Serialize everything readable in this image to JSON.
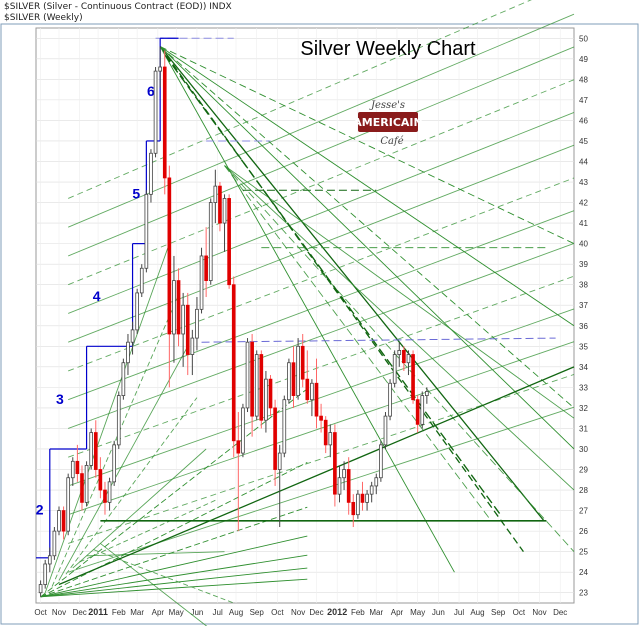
{
  "header": {
    "line1": "$SILVER (Silver - Continuous Contract (EOD)) INDX",
    "line2": "$SILVER (Weekly)"
  },
  "logo": {
    "line1": "Jesse's",
    "line2": "AMERICAIN",
    "line3": "Café"
  },
  "chart_data": {
    "type": "candlestick",
    "title": "Silver Weekly Chart",
    "ylim": [
      22.5,
      50.5
    ],
    "yticks": [
      23,
      24,
      25,
      26,
      27,
      28,
      29,
      30,
      31,
      32,
      33,
      34,
      35,
      36,
      37,
      38,
      39,
      40,
      41,
      42,
      43,
      44,
      45,
      46,
      47,
      48,
      49,
      50
    ],
    "x_labels": [
      {
        "label": "Oct",
        "week": 0
      },
      {
        "label": "Nov",
        "week": 4
      },
      {
        "label": "Dec",
        "week": 8.5
      },
      {
        "label": "2011",
        "week": 12.5
      },
      {
        "label": "Feb",
        "week": 17
      },
      {
        "label": "Mar",
        "week": 21
      },
      {
        "label": "Apr",
        "week": 25.5
      },
      {
        "label": "May",
        "week": 29.5
      },
      {
        "label": "Jun",
        "week": 34
      },
      {
        "label": "Jul",
        "week": 38.5
      },
      {
        "label": "Aug",
        "week": 42.5
      },
      {
        "label": "Sep",
        "week": 47
      },
      {
        "label": "Oct",
        "week": 51.5
      },
      {
        "label": "Nov",
        "week": 56
      },
      {
        "label": "Dec",
        "week": 60
      },
      {
        "label": "2012",
        "week": 64.5
      },
      {
        "label": "Feb",
        "week": 69
      },
      {
        "label": "Mar",
        "week": 73
      },
      {
        "label": "Apr",
        "week": 77.5
      },
      {
        "label": "May",
        "week": 82
      },
      {
        "label": "Jun",
        "week": 86.5
      },
      {
        "label": "Jul",
        "week": 91
      },
      {
        "label": "Aug",
        "week": 95
      },
      {
        "label": "Sep",
        "week": 99.5
      },
      {
        "label": "Oct",
        "week": 104
      },
      {
        "label": "Nov",
        "week": 108.5
      },
      {
        "label": "Dec",
        "week": 113
      }
    ],
    "candles": [
      [
        23.0,
        23.6,
        22.8,
        23.4
      ],
      [
        23.4,
        24.6,
        23.2,
        24.4
      ],
      [
        24.4,
        25.2,
        24.0,
        24.8
      ],
      [
        24.8,
        26.2,
        24.6,
        26.0
      ],
      [
        26.0,
        27.2,
        25.8,
        27.0
      ],
      [
        27.0,
        27.2,
        25.6,
        26.0
      ],
      [
        26.0,
        28.8,
        25.8,
        28.6
      ],
      [
        28.6,
        29.6,
        28.2,
        29.4
      ],
      [
        29.4,
        30.2,
        28.4,
        28.8
      ],
      [
        28.8,
        29.2,
        27.0,
        27.4
      ],
      [
        27.4,
        29.4,
        27.2,
        29.2
      ],
      [
        29.2,
        31.0,
        29.0,
        30.8
      ],
      [
        30.8,
        31.4,
        28.6,
        29.0
      ],
      [
        29.0,
        29.6,
        27.6,
        28.0
      ],
      [
        28.0,
        28.4,
        26.8,
        27.4
      ],
      [
        27.4,
        28.6,
        27.0,
        28.4
      ],
      [
        28.4,
        30.4,
        28.2,
        30.2
      ],
      [
        30.2,
        32.8,
        30.0,
        32.6
      ],
      [
        32.6,
        34.4,
        32.4,
        34.2
      ],
      [
        34.2,
        35.6,
        33.6,
        35.2
      ],
      [
        35.2,
        36.2,
        34.6,
        35.8
      ],
      [
        35.8,
        37.8,
        35.6,
        37.6
      ],
      [
        37.6,
        39.0,
        37.4,
        38.8
      ],
      [
        38.8,
        42.6,
        38.6,
        42.4
      ],
      [
        42.4,
        44.6,
        42.0,
        44.4
      ],
      [
        44.4,
        48.6,
        44.2,
        48.4
      ],
      [
        48.4,
        49.6,
        47.6,
        48.6
      ],
      [
        48.6,
        49.4,
        42.4,
        43.2
      ],
      [
        43.2,
        43.8,
        33.0,
        35.6
      ],
      [
        35.6,
        39.4,
        34.2,
        38.2
      ],
      [
        38.2,
        38.8,
        35.0,
        35.6
      ],
      [
        35.6,
        37.6,
        34.0,
        37.0
      ],
      [
        37.0,
        37.6,
        33.6,
        34.6
      ],
      [
        34.6,
        35.8,
        33.6,
        35.4
      ],
      [
        35.4,
        37.4,
        34.8,
        36.8
      ],
      [
        36.8,
        39.8,
        36.6,
        39.4
      ],
      [
        39.4,
        40.8,
        37.4,
        38.2
      ],
      [
        38.2,
        42.2,
        38.0,
        42.0
      ],
      [
        42.0,
        43.6,
        41.0,
        42.8
      ],
      [
        42.8,
        43.0,
        40.6,
        41.0
      ],
      [
        41.0,
        42.4,
        39.6,
        42.2
      ],
      [
        42.2,
        42.4,
        37.8,
        38.0
      ],
      [
        38.0,
        38.4,
        29.6,
        30.4
      ],
      [
        30.4,
        31.8,
        26.0,
        29.8
      ],
      [
        29.8,
        32.2,
        29.6,
        32.0
      ],
      [
        32.0,
        35.4,
        31.8,
        35.2
      ],
      [
        35.2,
        35.6,
        30.6,
        31.6
      ],
      [
        31.6,
        34.8,
        31.4,
        34.6
      ],
      [
        34.6,
        34.8,
        31.0,
        31.4
      ],
      [
        31.4,
        33.8,
        30.8,
        33.4
      ],
      [
        33.4,
        33.6,
        31.6,
        32.0
      ],
      [
        32.0,
        32.4,
        28.2,
        29.0
      ],
      [
        29.0,
        30.2,
        26.2,
        29.8
      ],
      [
        29.8,
        32.6,
        29.6,
        32.4
      ],
      [
        32.4,
        34.4,
        32.2,
        34.2
      ],
      [
        34.2,
        35.0,
        32.0,
        32.6
      ],
      [
        32.6,
        35.4,
        32.4,
        35.0
      ],
      [
        35.0,
        35.6,
        33.0,
        33.4
      ],
      [
        33.4,
        34.8,
        32.2,
        32.4
      ],
      [
        32.4,
        33.4,
        31.6,
        33.2
      ],
      [
        33.2,
        34.4,
        31.0,
        31.6
      ],
      [
        31.6,
        32.2,
        30.8,
        31.4
      ],
      [
        31.4,
        31.6,
        29.8,
        30.2
      ],
      [
        30.2,
        31.2,
        29.6,
        30.8
      ],
      [
        30.8,
        31.2,
        27.2,
        27.8
      ],
      [
        27.8,
        29.2,
        27.4,
        28.6
      ],
      [
        28.6,
        29.4,
        28.0,
        29.0
      ],
      [
        29.0,
        29.6,
        26.8,
        27.4
      ],
      [
        27.4,
        27.8,
        26.2,
        26.8
      ],
      [
        26.8,
        28.0,
        26.6,
        27.8
      ],
      [
        27.8,
        28.4,
        27.0,
        27.4
      ],
      [
        27.4,
        28.0,
        27.0,
        27.8
      ],
      [
        27.8,
        28.4,
        27.4,
        28.2
      ],
      [
        28.2,
        28.8,
        27.8,
        28.6
      ],
      [
        28.6,
        30.4,
        28.4,
        30.2
      ],
      [
        30.2,
        31.8,
        30.0,
        31.6
      ],
      [
        31.6,
        33.4,
        31.4,
        33.2
      ],
      [
        33.2,
        34.8,
        33.0,
        34.6
      ],
      [
        34.6,
        35.2,
        34.0,
        34.8
      ],
      [
        34.8,
        35.0,
        33.8,
        34.2
      ],
      [
        34.2,
        34.8,
        33.6,
        34.6
      ],
      [
        34.6,
        34.8,
        32.2,
        32.4
      ],
      [
        32.4,
        32.6,
        30.8,
        31.2
      ],
      [
        31.2,
        32.8,
        31.0,
        32.6
      ],
      [
        32.6,
        33.0,
        32.2,
        32.8
      ]
    ]
  },
  "annotations": {
    "waves": [
      "2",
      "3",
      "4",
      "5",
      "6"
    ]
  },
  "colors": {
    "up_body": "#ffffff",
    "up_edge": "#444444",
    "down_body": "#e00000",
    "down_wick": "#ff6666",
    "frame": "#7f9db9",
    "grid": "#dddddd",
    "wave": "#0000cc",
    "fan": "#2f8f2f",
    "fan_dark": "#116611"
  }
}
